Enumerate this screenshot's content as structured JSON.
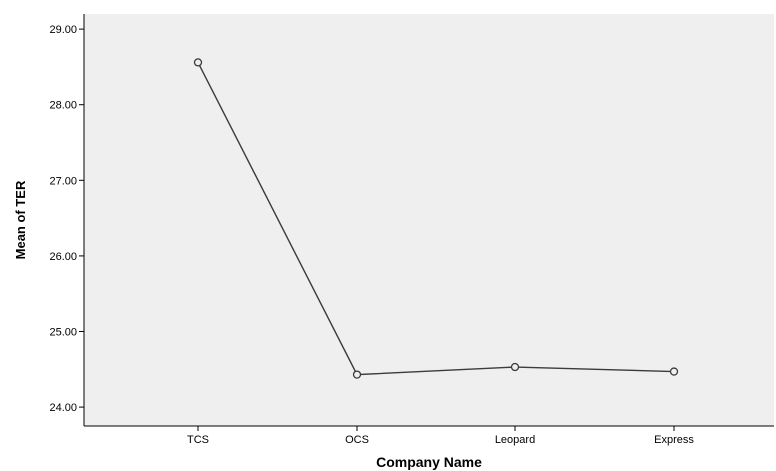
{
  "chart_data": {
    "type": "line",
    "title": "",
    "xlabel": "Company Name",
    "ylabel": "Mean of TER",
    "categories": [
      "TCS",
      "OCS",
      "Leopard",
      "Express"
    ],
    "series": [
      {
        "values": [
          28.56,
          24.43,
          24.53,
          24.47
        ]
      }
    ],
    "ylim": [
      23.75,
      29.2
    ],
    "yticks": [
      "24.00",
      "25.00",
      "26.00",
      "27.00",
      "28.00",
      "29.00"
    ],
    "grid": false,
    "legend": "none",
    "colors": {
      "plot_background": "#efefef",
      "line": "#3b3b3b",
      "marker_stroke": "#3b3b3b",
      "axis": "#000000"
    },
    "marker": "open-circle"
  }
}
